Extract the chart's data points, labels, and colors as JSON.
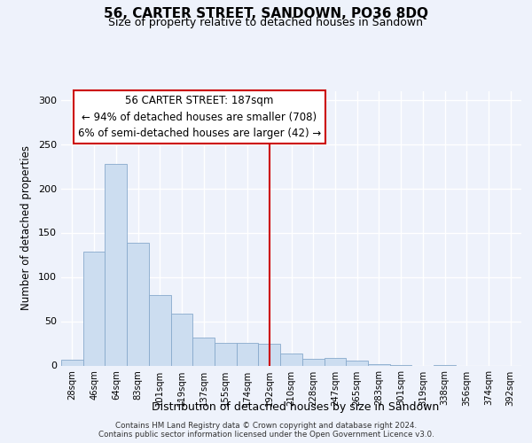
{
  "title": "56, CARTER STREET, SANDOWN, PO36 8DQ",
  "subtitle": "Size of property relative to detached houses in Sandown",
  "xlabel": "Distribution of detached houses by size in Sandown",
  "ylabel": "Number of detached properties",
  "bar_labels": [
    "28sqm",
    "46sqm",
    "64sqm",
    "83sqm",
    "101sqm",
    "119sqm",
    "137sqm",
    "155sqm",
    "174sqm",
    "192sqm",
    "210sqm",
    "228sqm",
    "247sqm",
    "265sqm",
    "283sqm",
    "301sqm",
    "319sqm",
    "338sqm",
    "356sqm",
    "374sqm",
    "392sqm"
  ],
  "bar_values": [
    7,
    129,
    228,
    139,
    80,
    59,
    32,
    26,
    26,
    25,
    14,
    8,
    9,
    6,
    2,
    1,
    0,
    1,
    0,
    0,
    0
  ],
  "bar_color": "#ccddf0",
  "bar_edge_color": "#88aacc",
  "highlight_index": 9,
  "highlight_line_color": "#cc0000",
  "ylim": [
    0,
    310
  ],
  "yticks": [
    0,
    50,
    100,
    150,
    200,
    250,
    300
  ],
  "annotation_title": "56 CARTER STREET: 187sqm",
  "annotation_line1": "← 94% of detached houses are smaller (708)",
  "annotation_line2": "6% of semi-detached houses are larger (42) →",
  "annotation_box_color": "#ffffff",
  "annotation_box_edge": "#cc0000",
  "footer_line1": "Contains HM Land Registry data © Crown copyright and database right 2024.",
  "footer_line2": "Contains public sector information licensed under the Open Government Licence v3.0.",
  "background_color": "#eef2fb"
}
